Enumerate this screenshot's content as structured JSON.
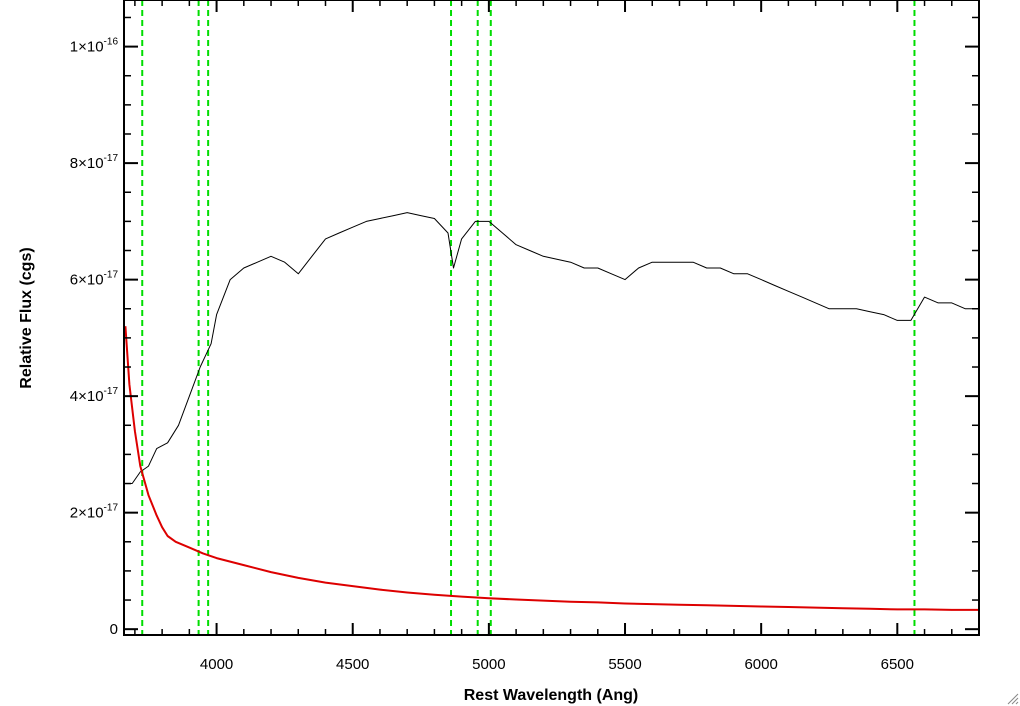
{
  "chart_data": {
    "type": "line",
    "xlabel": "Rest Wavelength (Ang)",
    "ylabel": "Relative Flux (cgs)",
    "xlim": [
      3660,
      6800
    ],
    "ylim": [
      -1e-18,
      1.08e-16
    ],
    "x_ticks": [
      {
        "value": 4000,
        "label": "4000"
      },
      {
        "value": 4500,
        "label": "4500"
      },
      {
        "value": 5000,
        "label": "5000"
      },
      {
        "value": 5500,
        "label": "5500"
      },
      {
        "value": 6000,
        "label": "6000"
      },
      {
        "value": 6500,
        "label": "6500"
      }
    ],
    "y_ticks": [
      {
        "value": 0,
        "mant": "0",
        "exp": ""
      },
      {
        "value": 2e-17,
        "mant": "2×10",
        "exp": "-17"
      },
      {
        "value": 4e-17,
        "mant": "4×10",
        "exp": "-17"
      },
      {
        "value": 6e-17,
        "mant": "6×10",
        "exp": "-17"
      },
      {
        "value": 8e-17,
        "mant": "8×10",
        "exp": "-17"
      },
      {
        "value": 1e-16,
        "mant": "1×10",
        "exp": "-16"
      }
    ],
    "grid": false,
    "marker_lines": {
      "color": "#00dd00",
      "style": "dashed",
      "x": [
        3727,
        3934,
        3969,
        4861,
        4959,
        5007,
        6563
      ]
    },
    "series": [
      {
        "color": "#000000",
        "style": "noisy spectrum",
        "x": [
          3665,
          3690,
          3720,
          3750,
          3780,
          3820,
          3860,
          3900,
          3940,
          3980,
          4000,
          4050,
          4100,
          4150,
          4200,
          4250,
          4300,
          4350,
          4400,
          4450,
          4500,
          4550,
          4600,
          4650,
          4700,
          4750,
          4800,
          4850,
          4870,
          4900,
          4950,
          5000,
          5050,
          5100,
          5150,
          5200,
          5250,
          5300,
          5350,
          5400,
          5450,
          5500,
          5550,
          5600,
          5650,
          5700,
          5750,
          5800,
          5850,
          5900,
          5950,
          6000,
          6050,
          6100,
          6150,
          6200,
          6250,
          6300,
          6350,
          6400,
          6450,
          6500,
          6550,
          6600,
          6650,
          6700,
          6750,
          6800
        ],
        "y": [
          2.5e-17,
          2.5e-17,
          2.7e-17,
          2.8e-17,
          3.1e-17,
          3.2e-17,
          3.5e-17,
          4e-17,
          4.5e-17,
          4.9e-17,
          5.4e-17,
          6e-17,
          6.2e-17,
          6.3e-17,
          6.4e-17,
          6.3e-17,
          6.1e-17,
          6.4e-17,
          6.7e-17,
          6.8e-17,
          6.9e-17,
          7e-17,
          7.05e-17,
          7.1e-17,
          7.15e-17,
          7.1e-17,
          7.05e-17,
          6.8e-17,
          6.2e-17,
          6.7e-17,
          7e-17,
          7e-17,
          6.8e-17,
          6.6e-17,
          6.5e-17,
          6.4e-17,
          6.35e-17,
          6.3e-17,
          6.2e-17,
          6.2e-17,
          6.1e-17,
          6e-17,
          6.2e-17,
          6.3e-17,
          6.3e-17,
          6.3e-17,
          6.3e-17,
          6.2e-17,
          6.2e-17,
          6.1e-17,
          6.1e-17,
          6e-17,
          5.9e-17,
          5.8e-17,
          5.7e-17,
          5.6e-17,
          5.5e-17,
          5.5e-17,
          5.5e-17,
          5.45e-17,
          5.4e-17,
          5.3e-17,
          5.3e-17,
          5.7e-17,
          5.6e-17,
          5.6e-17,
          5.5e-17,
          5.5e-17
        ]
      },
      {
        "color": "#dd0000",
        "style": "model",
        "x": [
          3665,
          3680,
          3700,
          3720,
          3750,
          3780,
          3800,
          3820,
          3850,
          3900,
          3950,
          4000,
          4100,
          4200,
          4300,
          4400,
          4500,
          4600,
          4700,
          4800,
          4900,
          5000,
          5100,
          5200,
          5300,
          5400,
          5500,
          5600,
          5700,
          5800,
          5900,
          6000,
          6100,
          6200,
          6300,
          6400,
          6500,
          6600,
          6700,
          6800
        ],
        "y": [
          5.2e-17,
          4.2e-17,
          3.4e-17,
          2.8e-17,
          2.3e-17,
          1.95e-17,
          1.75e-17,
          1.6e-17,
          1.5e-17,
          1.4e-17,
          1.3e-17,
          1.22e-17,
          1.1e-17,
          9.8e-18,
          8.8e-18,
          8e-18,
          7.4e-18,
          6.8e-18,
          6.3e-18,
          5.9e-18,
          5.6e-18,
          5.3e-18,
          5.1e-18,
          4.9e-18,
          4.7e-18,
          4.6e-18,
          4.4e-18,
          4.3e-18,
          4.2e-18,
          4.1e-18,
          4e-18,
          3.9e-18,
          3.8e-18,
          3.7e-18,
          3.6e-18,
          3.5e-18,
          3.4e-18,
          3.4e-18,
          3.3e-18,
          3.3e-18
        ]
      }
    ]
  }
}
